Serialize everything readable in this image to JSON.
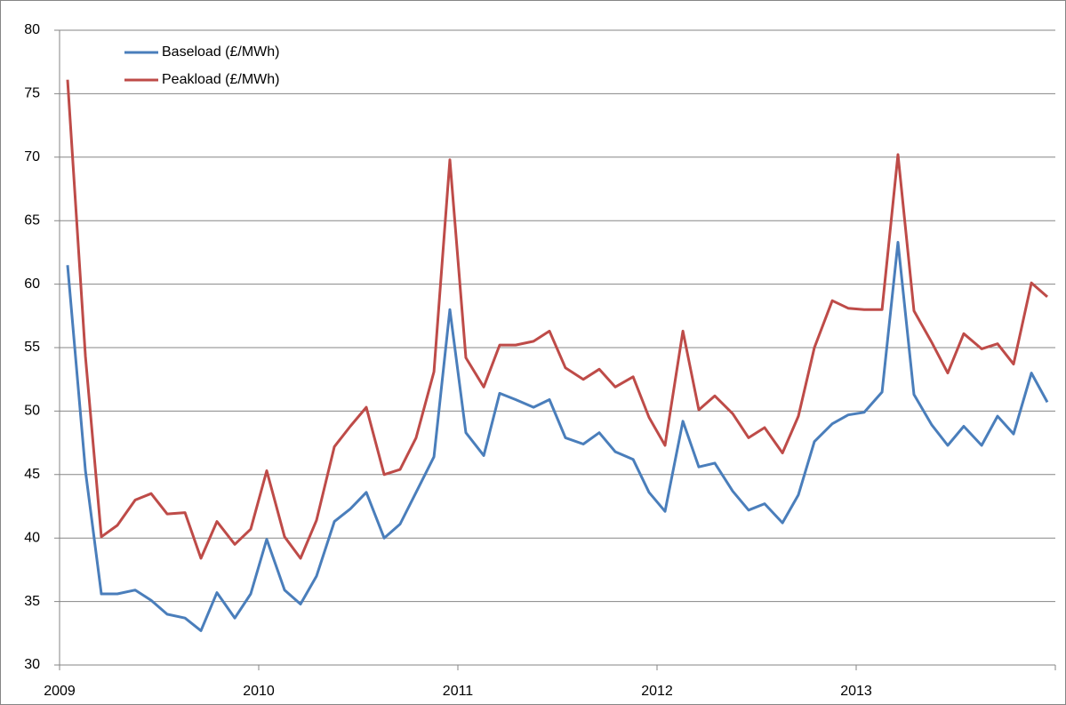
{
  "chart_data": {
    "type": "line",
    "x": [
      2009.04,
      2009.13,
      2009.21,
      2009.29,
      2009.38,
      2009.46,
      2009.54,
      2009.63,
      2009.71,
      2009.79,
      2009.88,
      2009.96,
      2010.04,
      2010.13,
      2010.21,
      2010.29,
      2010.38,
      2010.46,
      2010.54,
      2010.63,
      2010.71,
      2010.79,
      2010.88,
      2010.96,
      2011.04,
      2011.13,
      2011.21,
      2011.29,
      2011.38,
      2011.46,
      2011.54,
      2011.63,
      2011.71,
      2011.79,
      2011.88,
      2011.96,
      2012.04,
      2012.13,
      2012.21,
      2012.29,
      2012.38,
      2012.46,
      2012.54,
      2012.63,
      2012.71,
      2012.79,
      2012.88,
      2012.96,
      2013.04,
      2013.13,
      2013.21,
      2013.29,
      2013.38,
      2013.46,
      2013.54,
      2013.63,
      2013.71,
      2013.79,
      2013.88,
      2013.96
    ],
    "series": [
      {
        "name": "Baseload (£/MWh)",
        "color": "#4a7ebb",
        "values": [
          61.5,
          45.3,
          35.6,
          35.6,
          35.9,
          35.1,
          34.0,
          33.7,
          32.7,
          35.7,
          33.7,
          35.6,
          39.9,
          35.9,
          34.8,
          37.0,
          41.3,
          42.3,
          43.6,
          40.0,
          41.1,
          43.6,
          46.4,
          58.0,
          48.3,
          46.5,
          51.4,
          50.9,
          50.3,
          50.9,
          47.9,
          47.4,
          48.3,
          46.8,
          46.2,
          43.6,
          42.1,
          49.2,
          45.6,
          45.9,
          43.7,
          42.2,
          42.7,
          41.2,
          43.4,
          47.6,
          49.0,
          49.7,
          49.9,
          51.5,
          63.3,
          51.3,
          48.9,
          47.3,
          48.8,
          47.3,
          49.6,
          48.2,
          53.0,
          50.7
        ]
      },
      {
        "name": "Peakload (£/MWh)",
        "color": "#be4b48",
        "values": [
          76.1,
          54.3,
          40.1,
          41.0,
          43.0,
          43.5,
          41.9,
          42.0,
          38.4,
          41.3,
          39.5,
          40.7,
          45.3,
          40.1,
          38.4,
          41.4,
          47.2,
          48.8,
          50.3,
          45.0,
          45.4,
          47.9,
          53.1,
          69.8,
          54.2,
          51.9,
          55.2,
          55.2,
          55.5,
          56.3,
          53.4,
          52.5,
          53.3,
          51.9,
          52.7,
          49.5,
          47.3,
          56.3,
          50.1,
          51.2,
          49.8,
          47.9,
          48.7,
          46.7,
          49.6,
          55.0,
          58.7,
          58.1,
          58.0,
          58.0,
          70.2,
          57.9,
          55.4,
          53.0,
          56.1,
          54.9,
          55.3,
          53.7,
          60.1,
          59.0
        ]
      }
    ],
    "xlim": [
      2009,
      2014
    ],
    "xticks": [
      2009,
      2010,
      2011,
      2012,
      2013
    ],
    "ylim": [
      30,
      80
    ],
    "yticks": [
      30,
      35,
      40,
      45,
      50,
      55,
      60,
      65,
      70,
      75,
      80
    ],
    "grid": true,
    "legend": "top-left"
  }
}
